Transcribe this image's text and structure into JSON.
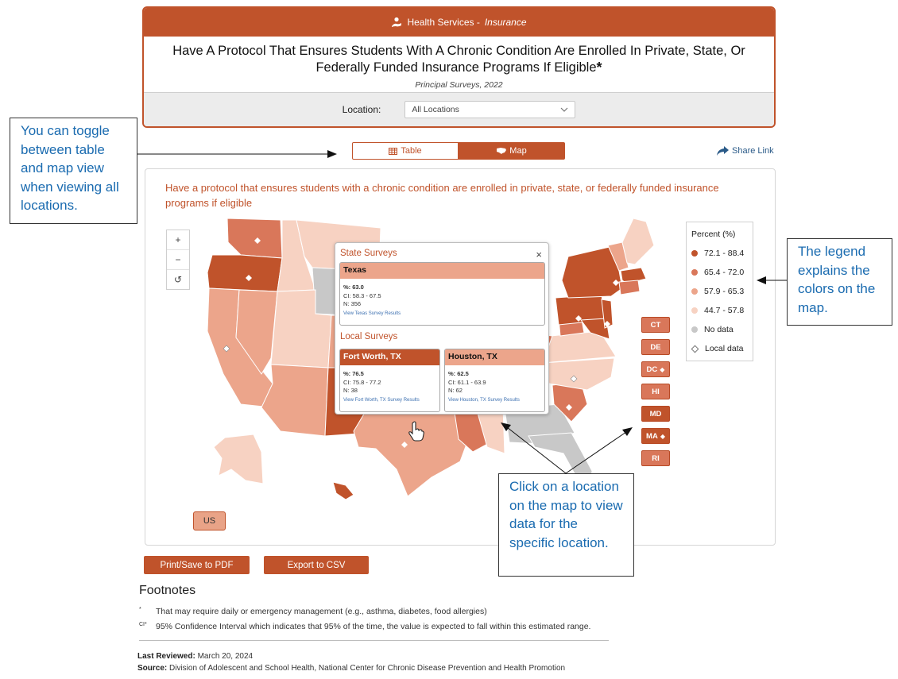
{
  "header": {
    "category": "Health Services - ",
    "category_italic": "Insurance",
    "title": "Have A Protocol That Ensures Students With A Chronic Condition Are Enrolled In Private, State, Or Federally Funded Insurance Programs If Eligible",
    "title_mark": "*",
    "subtitle": "Principal Surveys, 2022",
    "location_label": "Location:",
    "location_value": "All Locations"
  },
  "toggle": {
    "table_label": "Table",
    "map_label": "Map",
    "selected": "Map"
  },
  "share_label": "Share Link",
  "map": {
    "title": "Have a protocol that ensures students with a chronic condition are enrolled in private, state, or federally funded insurance programs if eligible",
    "zoom_in": "+",
    "zoom_out": "−",
    "reset": "↺",
    "legend": {
      "title": "Percent (%)",
      "items": [
        {
          "label": "72.1 - 88.4",
          "color": "#c0532b"
        },
        {
          "label": "65.4 - 72.0",
          "color": "#d9775a"
        },
        {
          "label": "57.9 - 65.3",
          "color": "#eca58b"
        },
        {
          "label": "44.7 - 57.8",
          "color": "#f7d2c2"
        },
        {
          "label": "No data",
          "color": "#c8c8c8"
        },
        {
          "label": "Local data",
          "color": "#ffffff"
        }
      ]
    },
    "small_states": [
      {
        "code": "CT",
        "local": false
      },
      {
        "code": "DE",
        "local": false
      },
      {
        "code": "DC",
        "local": true
      },
      {
        "code": "HI",
        "local": false
      },
      {
        "code": "MD",
        "local": false
      },
      {
        "code": "MA",
        "local": true
      },
      {
        "code": "RI",
        "local": false
      }
    ],
    "us_button": "US"
  },
  "popup": {
    "state_heading": "State Surveys",
    "close": "×",
    "state": {
      "name": "Texas",
      "pct": "%: 63.0",
      "ci": "CI: 58.3 - 67.5",
      "n": "N: 356",
      "link": "View Texas Survey Results"
    },
    "local_heading": "Local Surveys",
    "locals": [
      {
        "name": "Fort Worth, TX",
        "pct": "%: 76.5",
        "ci": "CI: 75.8 - 77.2",
        "n": "N: 38",
        "link": "View Fort Worth, TX Survey Results"
      },
      {
        "name": "Houston, TX",
        "pct": "%: 62.5",
        "ci": "CI: 61.1 - 63.9",
        "n": "N: 62",
        "link": "View Houston, TX Survey Results"
      }
    ]
  },
  "actions": {
    "print": "Print/Save to PDF",
    "export": "Export to CSV"
  },
  "footnotes": {
    "heading": "Footnotes",
    "items": [
      {
        "mark": "*",
        "text": "That may require daily or emergency management (e.g., asthma, diabetes, food allergies)"
      },
      {
        "mark": "CI*",
        "text": "95% Confidence Interval which indicates that 95% of the time, the value is expected to fall within this estimated range."
      }
    ]
  },
  "meta": {
    "reviewed_label": "Last Reviewed:",
    "reviewed_value": "March 20, 2024",
    "source_label": "Source:",
    "source_value": "Division of Adolescent and School Health, National Center for Chronic Disease Prevention and Health Promotion"
  },
  "annotations": {
    "toggle_note": "You can toggle between table and map view when viewing all locations.",
    "legend_note": "The legend explains the colors on the map.",
    "click_note": "Click on a location on the map to view data for the specific location."
  }
}
